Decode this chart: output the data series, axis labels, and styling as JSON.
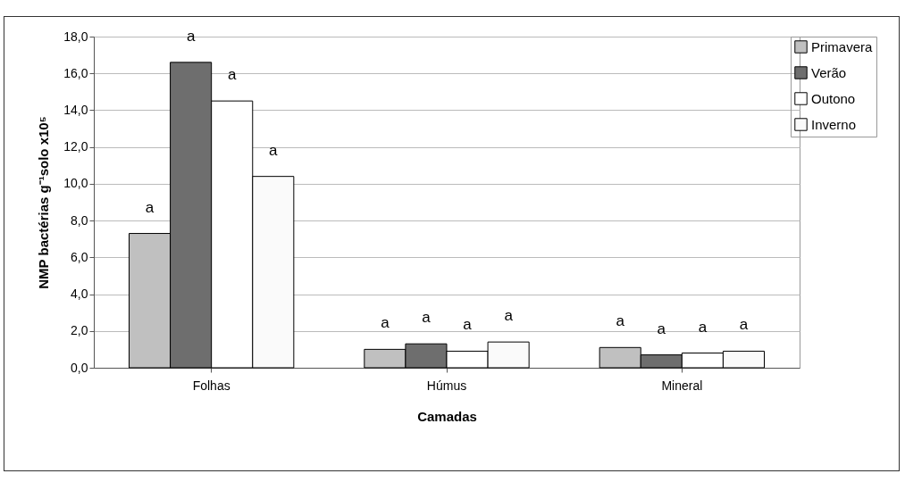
{
  "chart_data": {
    "type": "bar",
    "xlabel": "Camadas",
    "ylabel": "NMP bactérias g⁻¹solo x10⁵",
    "categories": [
      "Folhas",
      "Húmus",
      "Mineral"
    ],
    "series": [
      {
        "name": "Primavera",
        "color": "#c0c0c0",
        "values": [
          7.3,
          1.0,
          1.1
        ]
      },
      {
        "name": "Verão",
        "color": "#6e6e6e",
        "values": [
          16.6,
          1.3,
          0.7
        ]
      },
      {
        "name": "Outono",
        "color": "#ffffff",
        "values": [
          14.5,
          0.9,
          0.8
        ]
      },
      {
        "name": "Inverno",
        "color": "#fafafa",
        "values": [
          10.4,
          1.4,
          0.9
        ]
      }
    ],
    "ylim": [
      0,
      18
    ],
    "yticks": [
      {
        "value": 0,
        "label": "0,0"
      },
      {
        "value": 2,
        "label": "2,0"
      },
      {
        "value": 4,
        "label": "4,0"
      },
      {
        "value": 6,
        "label": "6,0"
      },
      {
        "value": 8,
        "label": "8,0"
      },
      {
        "value": 10,
        "label": "10,0"
      },
      {
        "value": 12,
        "label": "12,0"
      },
      {
        "value": 14,
        "label": "14,0"
      },
      {
        "value": 16,
        "label": "16,0"
      },
      {
        "value": 18,
        "label": "18,0"
      }
    ],
    "grid": "y",
    "legend": "right",
    "annotations": [
      "a",
      "a",
      "a",
      "a",
      "a",
      "a",
      "a",
      "a",
      "a",
      "a",
      "a",
      "a"
    ]
  }
}
